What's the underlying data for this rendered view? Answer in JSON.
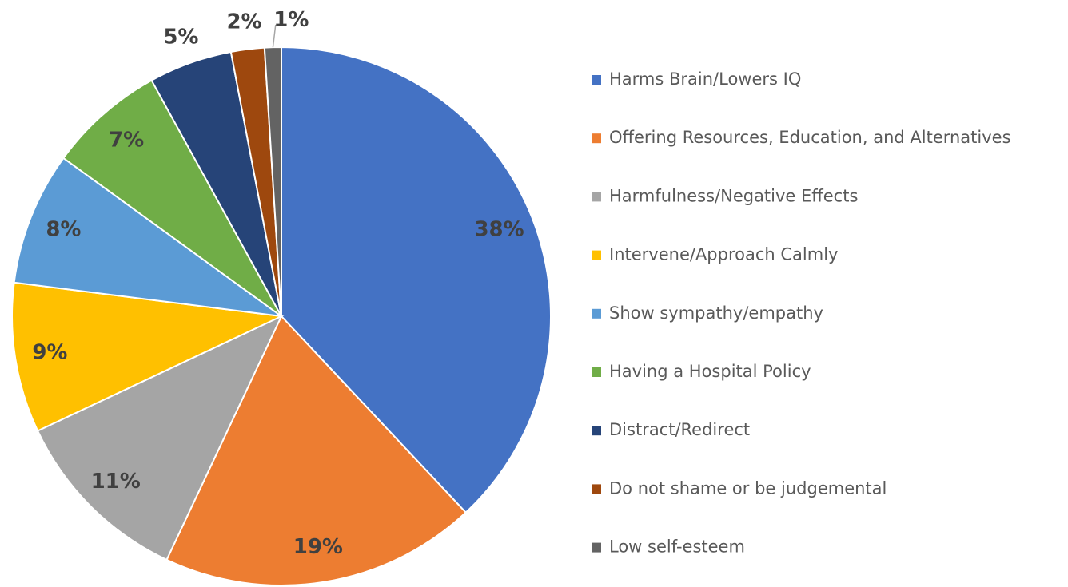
{
  "chart_data": {
    "type": "pie",
    "categories": [
      "Harms Brain/Lowers IQ",
      "Offering Resources, Education, and Alternatives",
      "Harmfulness/Negative Effects",
      "Intervene/Approach Calmly",
      "Show sympathy/empathy",
      "Having a Hospital Policy",
      "Distract/Redirect",
      "Do not shame or be judgemental",
      "Low self-esteem"
    ],
    "values": [
      38,
      19,
      11,
      9,
      8,
      7,
      5,
      2,
      1
    ],
    "value_labels": [
      "38%",
      "19%",
      "11%",
      "9%",
      "8%",
      "7%",
      "5%",
      "2%",
      "1%"
    ],
    "colors": [
      "#4472c4",
      "#ed7d31",
      "#a5a5a5",
      "#ffc000",
      "#5b9bd5",
      "#70ad47",
      "#264478",
      "#9e480e",
      "#636363"
    ],
    "legend": "right"
  }
}
